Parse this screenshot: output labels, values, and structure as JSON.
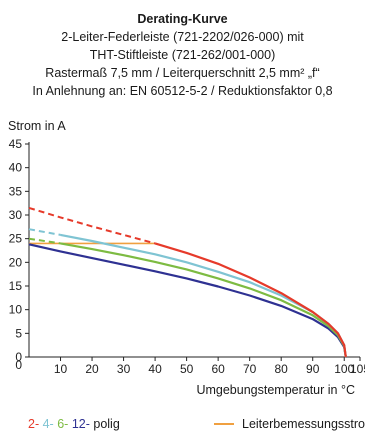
{
  "header": {
    "title": "Derating-Kurve",
    "subtitle_lines": [
      "2-Leiter-Federleiste (721-2202/026-000) mit",
      "THT-Stiftleiste (721-262/001-000)",
      "Rastermaß 7,5 mm / Leiterquerschnitt 2,5 mm² „f“",
      "In Anlehnung an: EN 60512-5-2 / Reduktionsfaktor 0,8"
    ]
  },
  "legend": {
    "poles": [
      {
        "text": "2-",
        "color": "#e63a2a"
      },
      {
        "text": "4-",
        "color": "#7fc4d3"
      },
      {
        "text": "6-",
        "color": "#7dbb42"
      },
      {
        "text": "12-",
        "color": "#2e3192"
      }
    ],
    "poles_suffix": " polig",
    "rated_current": {
      "text": "Leiterbemessungsstrom",
      "color": "#f0a040"
    }
  },
  "chart_data": {
    "type": "line",
    "xlabel": "Umgebungstemperatur in °C",
    "ylabel": "Strom in A",
    "xlim": [
      0,
      105
    ],
    "ylim": [
      0,
      45
    ],
    "xticks": [
      10,
      20,
      30,
      40,
      50,
      60,
      70,
      80,
      90,
      100,
      105
    ],
    "yticks": [
      0,
      5,
      10,
      15,
      20,
      25,
      30,
      35,
      40,
      45
    ],
    "x_tick_labels": [
      "10",
      "20",
      "30",
      "40",
      "50",
      "60",
      "70",
      "80",
      "90",
      "100",
      "105"
    ],
    "y_tick_labels": [
      "0",
      "5",
      "10",
      "15",
      "20",
      "25",
      "30",
      "35",
      "40",
      "45"
    ],
    "origin_label": "0",
    "grid": false,
    "rated_current": {
      "x": [
        0,
        40
      ],
      "y": [
        24,
        24
      ],
      "color": "#f0a040"
    },
    "series": [
      {
        "name": "2-",
        "color": "#e63a2a",
        "dashed": {
          "x": [
            0,
            10,
            20,
            30,
            40
          ],
          "y": [
            31.5,
            29.5,
            27.6,
            25.8,
            24
          ]
        },
        "solid": {
          "x": [
            40,
            50,
            60,
            70,
            80,
            90,
            95,
            98,
            100,
            100.5
          ],
          "y": [
            24,
            22,
            19.7,
            16.8,
            13.5,
            9.5,
            7,
            5,
            2.5,
            0
          ]
        }
      },
      {
        "name": "4-",
        "color": "#7fc4d3",
        "dashed": {
          "x": [
            0,
            10
          ],
          "y": [
            27,
            25.8
          ]
        },
        "solid": {
          "x": [
            10,
            20,
            30,
            40,
            50,
            60,
            70,
            80,
            90,
            95,
            98,
            100,
            100.5
          ],
          "y": [
            25.8,
            24.5,
            23.1,
            21.7,
            20,
            18,
            15.8,
            13,
            9.5,
            7,
            5,
            2.5,
            0
          ]
        }
      },
      {
        "name": "6-",
        "color": "#7dbb42",
        "dashed": {
          "x": [
            0,
            10
          ],
          "y": [
            25,
            24
          ]
        },
        "solid": {
          "x": [
            10,
            20,
            30,
            40,
            50,
            60,
            70,
            80,
            90,
            95,
            98,
            100,
            100.5
          ],
          "y": [
            24,
            22.8,
            21.5,
            20.1,
            18.5,
            16.6,
            14.5,
            12,
            8.8,
            6.5,
            4.6,
            2.3,
            0
          ]
        }
      },
      {
        "name": "12-",
        "color": "#2e3192",
        "dashed": null,
        "solid": {
          "x": [
            0,
            10,
            20,
            30,
            40,
            50,
            60,
            70,
            80,
            90,
            95,
            98,
            100,
            100.5
          ],
          "y": [
            23.8,
            22.3,
            20.9,
            19.5,
            18.1,
            16.6,
            14.9,
            13,
            10.8,
            8,
            6,
            4.2,
            2.1,
            0
          ]
        }
      }
    ]
  }
}
